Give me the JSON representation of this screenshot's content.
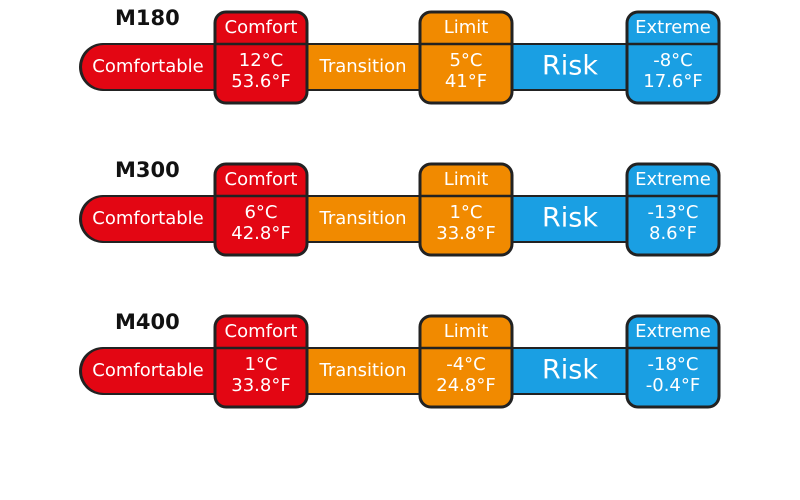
{
  "products": [
    {
      "name": "M180",
      "zones": [
        "Comfortable",
        "Transition",
        "Risk"
      ],
      "points": [
        {
          "label": "Comfort",
          "celsius": "12°C",
          "fahrenheit": "53.6°F"
        },
        {
          "label": "Limit",
          "celsius": "5°C",
          "fahrenheit": "41°F"
        },
        {
          "label": "Extreme",
          "celsius": "-8°C",
          "fahrenheit": "17.6°F"
        }
      ]
    },
    {
      "name": "M300",
      "zones": [
        "Comfortable",
        "Transition",
        "Risk"
      ],
      "points": [
        {
          "label": "Comfort",
          "celsius": "6°C",
          "fahrenheit": "42.8°F"
        },
        {
          "label": "Limit",
          "celsius": "1°C",
          "fahrenheit": "33.8°F"
        },
        {
          "label": "Extreme",
          "celsius": "-13°C",
          "fahrenheit": "8.6°F"
        }
      ]
    },
    {
      "name": "M400",
      "zones": [
        "Comfortable",
        "Transition",
        "Risk"
      ],
      "points": [
        {
          "label": "Comfort",
          "celsius": "1°C",
          "fahrenheit": "33.8°F"
        },
        {
          "label": "Limit",
          "celsius": "-4°C",
          "fahrenheit": "24.8°F"
        },
        {
          "label": "Extreme",
          "celsius": "-18°C",
          "fahrenheit": "-0.4°F"
        }
      ]
    }
  ]
}
